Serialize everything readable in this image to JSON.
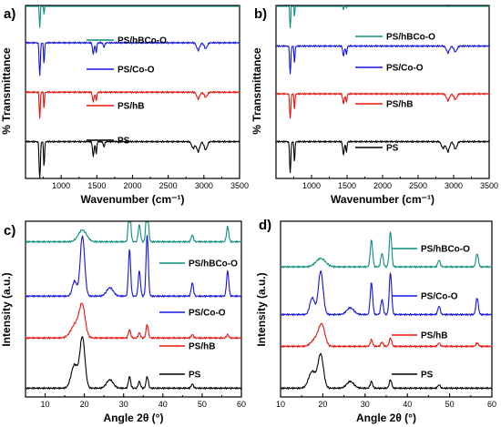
{
  "colors": {
    "PS": "#000000",
    "PS/hB": "#e8120c",
    "PS/Co-O": "#1414e0",
    "PS/hBCo-O": "#0d8f7a"
  },
  "chart_data": [
    {
      "panel": "a)",
      "type": "line",
      "title": "",
      "xlabel": "Wavenumber (cm⁻¹)",
      "ylabel": "% Transmittance",
      "xlim": [
        500,
        3500
      ],
      "xticks": [
        "1000",
        "1500",
        "2000",
        "2500",
        "3000",
        "3500"
      ],
      "grid": false,
      "legend_placement": "inline-right",
      "series": [
        {
          "name": "PS",
          "key": "PS",
          "offset": 0,
          "bumps": [
            [
              700,
              48,
              12
            ],
            [
              760,
              30,
              10
            ],
            [
              1450,
              18,
              15
            ],
            [
              1490,
              15,
              12
            ],
            [
              1600,
              6,
              15
            ],
            [
              2850,
              8,
              30
            ],
            [
              2920,
              12,
              30
            ],
            [
              3025,
              10,
              30
            ]
          ]
        },
        {
          "name": "PS/hB",
          "key": "PS/hB",
          "offset": 60,
          "bumps": [
            [
              700,
              32,
              10
            ],
            [
              760,
              20,
              8
            ],
            [
              1450,
              12,
              15
            ],
            [
              1490,
              10,
              12
            ],
            [
              2920,
              8,
              30
            ],
            [
              3025,
              6,
              30
            ]
          ]
        },
        {
          "name": "PS/Co-O",
          "key": "PS/Co-O",
          "offset": 120,
          "bumps": [
            [
              700,
              40,
              12
            ],
            [
              760,
              25,
              10
            ],
            [
              1450,
              14,
              15
            ],
            [
              1490,
              12,
              12
            ],
            [
              1600,
              5,
              15
            ],
            [
              2920,
              9,
              30
            ],
            [
              3025,
              7,
              30
            ]
          ]
        },
        {
          "name": "PS/hBCo-O",
          "key": "PS/hBCo-O",
          "offset": 180,
          "bumps": [
            [
              700,
              42,
              12
            ],
            [
              760,
              26,
              10
            ],
            [
              1450,
              15,
              15
            ],
            [
              1490,
              12,
              12
            ],
            [
              1600,
              5,
              15
            ],
            [
              2920,
              10,
              30
            ],
            [
              3025,
              8,
              30
            ]
          ]
        }
      ]
    },
    {
      "panel": "b)",
      "type": "line",
      "title": "",
      "xlabel": "Wavenumber (cm⁻¹)",
      "ylabel": "% Transmittance",
      "xlim": [
        500,
        3500
      ],
      "xticks": [
        "1000",
        "1500",
        "2000",
        "2500",
        "3000",
        "3500"
      ],
      "grid": false,
      "legend_placement": "inline-right",
      "series": [
        {
          "name": "PS",
          "key": "PS",
          "offset": 0,
          "bumps": [
            [
              700,
              38,
              12
            ],
            [
              760,
              24,
              10
            ],
            [
              1450,
              16,
              15
            ],
            [
              1490,
              13,
              12
            ],
            [
              2850,
              8,
              30
            ],
            [
              2920,
              12,
              30
            ],
            [
              3025,
              9,
              30
            ]
          ]
        },
        {
          "name": "PS/hB",
          "key": "PS/hB",
          "offset": 58,
          "bumps": [
            [
              700,
              30,
              12
            ],
            [
              760,
              18,
              10
            ],
            [
              1450,
              12,
              15
            ],
            [
              1490,
              10,
              12
            ],
            [
              2920,
              8,
              30
            ],
            [
              3025,
              7,
              30
            ]
          ]
        },
        {
          "name": "PS/Co-O",
          "key": "PS/Co-O",
          "offset": 116,
          "bumps": [
            [
              700,
              34,
              12
            ],
            [
              760,
              20,
              10
            ],
            [
              1450,
              12,
              15
            ],
            [
              1490,
              10,
              12
            ],
            [
              2920,
              8,
              30
            ],
            [
              3025,
              7,
              30
            ]
          ]
        },
        {
          "name": "PS/hBCo-O",
          "key": "PS/hBCo-O",
          "offset": 174,
          "bumps": [
            [
              700,
              36,
              12
            ],
            [
              760,
              22,
              10
            ],
            [
              1450,
              14,
              15
            ],
            [
              1490,
              12,
              12
            ],
            [
              2920,
              9,
              30
            ],
            [
              3025,
              7,
              30
            ]
          ]
        }
      ]
    },
    {
      "panel": "c)",
      "type": "line",
      "title": "",
      "xlabel": "Angle 2θ (°)",
      "ylabel": "Intensity (a.u.)",
      "xlim": [
        5,
        60
      ],
      "xticks": [
        "10",
        "20",
        "30",
        "40",
        "50",
        "60"
      ],
      "grid": false,
      "legend_placement": "inline-right",
      "series": [
        {
          "name": "PS",
          "key": "PS",
          "offset": 0,
          "bumps": [
            [
              17.5,
              28,
              1.2
            ],
            [
              19.5,
              60,
              0.9
            ],
            [
              26.5,
              10,
              1.2
            ],
            [
              31.5,
              14,
              0.4
            ],
            [
              34,
              8,
              0.4
            ],
            [
              36,
              14,
              0.4
            ],
            [
              47.5,
              5,
              0.4
            ]
          ]
        },
        {
          "name": "PS/hB",
          "key": "PS/hB",
          "offset": 60,
          "bumps": [
            [
              18,
              18,
              1.8
            ],
            [
              19.5,
              32,
              1.0
            ],
            [
              31.5,
              10,
              0.4
            ],
            [
              34,
              6,
              0.4
            ],
            [
              36,
              16,
              0.4
            ],
            [
              47.5,
              4,
              0.4
            ],
            [
              56.5,
              4,
              0.4
            ]
          ]
        },
        {
          "name": "PS/Co-O",
          "key": "PS/Co-O",
          "offset": 110,
          "bumps": [
            [
              17.5,
              18,
              0.8
            ],
            [
              19.5,
              72,
              0.8
            ],
            [
              26.5,
              10,
              1.2
            ],
            [
              31.5,
              56,
              0.4
            ],
            [
              34,
              30,
              0.4
            ],
            [
              36,
              74,
              0.4
            ],
            [
              47.5,
              16,
              0.4
            ],
            [
              56.5,
              30,
              0.4
            ]
          ]
        },
        {
          "name": "PS/hBCo-O",
          "key": "PS/hBCo-O",
          "offset": 175,
          "bumps": [
            [
              19.5,
              14,
              1.5
            ],
            [
              31.5,
              48,
              0.4
            ],
            [
              34,
              20,
              0.4
            ],
            [
              36,
              56,
              0.4
            ],
            [
              47.5,
              8,
              0.4
            ],
            [
              56.5,
              18,
              0.4
            ]
          ]
        }
      ]
    },
    {
      "panel": "d)",
      "type": "line",
      "title": "",
      "xlabel": "Angle 2θ (°)",
      "ylabel": "Intensity (a.u.)",
      "xlim": [
        10,
        60
      ],
      "xticks": [
        "10",
        "20",
        "30",
        "40",
        "50",
        "60"
      ],
      "grid": false,
      "legend_placement": "inline-right",
      "series": [
        {
          "name": "PS",
          "key": "PS",
          "offset": 0,
          "bumps": [
            [
              17.5,
              20,
              1.2
            ],
            [
              19.5,
              40,
              0.9
            ],
            [
              26.5,
              8,
              1.2
            ],
            [
              31.5,
              8,
              0.4
            ],
            [
              36,
              10,
              0.4
            ],
            [
              47.5,
              4,
              0.4
            ]
          ]
        },
        {
          "name": "PS/hB",
          "key": "PS/hB",
          "offset": 50,
          "bumps": [
            [
              18.5,
              10,
              1.5
            ],
            [
              19.8,
              22,
              1.0
            ],
            [
              31.5,
              8,
              0.4
            ],
            [
              34,
              5,
              0.4
            ],
            [
              36,
              10,
              0.4
            ],
            [
              47.5,
              4,
              0.4
            ],
            [
              56.5,
              4,
              0.4
            ]
          ]
        },
        {
          "name": "PS/Co-O",
          "key": "PS/Co-O",
          "offset": 88,
          "bumps": [
            [
              17.5,
              20,
              0.8
            ],
            [
              19.5,
              52,
              0.8
            ],
            [
              26.5,
              8,
              1.2
            ],
            [
              31.5,
              38,
              0.4
            ],
            [
              34,
              18,
              0.4
            ],
            [
              36,
              50,
              0.4
            ],
            [
              47.5,
              10,
              0.4
            ],
            [
              56.5,
              20,
              0.4
            ]
          ]
        },
        {
          "name": "PS/hBCo-O",
          "key": "PS/hBCo-O",
          "offset": 145,
          "bumps": [
            [
              19.5,
              10,
              1.6
            ],
            [
              31.5,
              32,
              0.4
            ],
            [
              34,
              16,
              0.4
            ],
            [
              36,
              42,
              0.4
            ],
            [
              47.5,
              8,
              0.4
            ],
            [
              56.5,
              16,
              0.4
            ]
          ]
        }
      ]
    }
  ]
}
